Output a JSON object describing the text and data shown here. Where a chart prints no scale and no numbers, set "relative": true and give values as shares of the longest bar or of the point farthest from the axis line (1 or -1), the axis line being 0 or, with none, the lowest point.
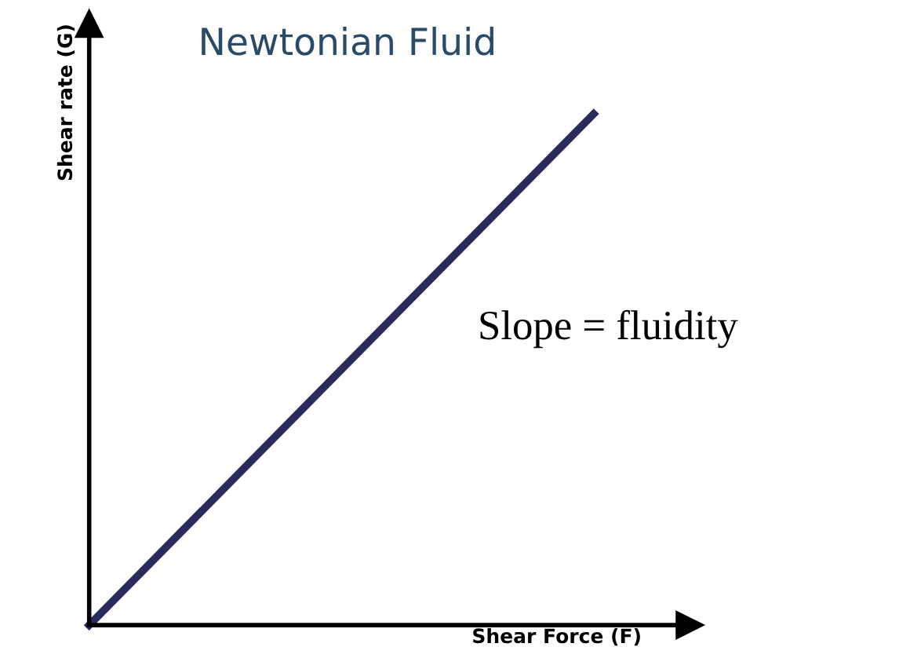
{
  "chart_data": {
    "type": "line",
    "title": "Newtonian Fluid",
    "xlabel": "Shear Force (F)",
    "ylabel": "Shear rate (G)",
    "categories": [
      null,
      null
    ],
    "series": [
      {
        "color": "#2b2a5c",
        "values": [
          0,
          1
        ]
      }
    ],
    "relative": true,
    "legend": false,
    "marker": "none",
    "line_style": "solid",
    "annotations": [
      "Slope = fluidity"
    ]
  }
}
